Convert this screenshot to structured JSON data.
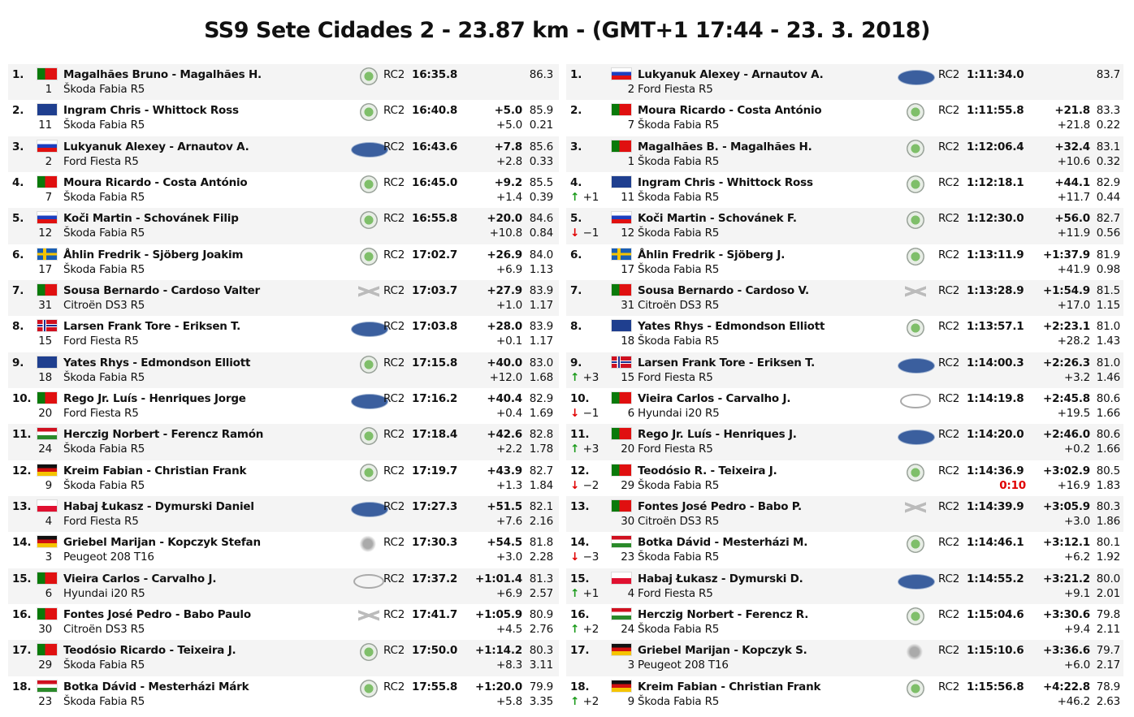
{
  "title": "SS9 Sete Cidades 2 - 23.87 km - (GMT+1 17:44 - 23. 3. 2018)",
  "colors": {
    "row_alt": "#f4f4f4",
    "penalty": "#e00000",
    "up": "#1a9a1a",
    "down": "#e00000"
  },
  "flags": {
    "PT": [
      "linear-gradient(90deg,#0a7a0a 0 40%,#e01010 40%)"
    ],
    "GB": [
      "#1f3f8f"
    ],
    "RU": [
      "linear-gradient(#fff 0 33%,#1c3fbf 33% 66%,#e01010 66%)"
    ],
    "SK": [
      "linear-gradient(#fff 0 33%,#1c3fbf 33% 66%,#e01010 66%)"
    ],
    "SE": [
      "linear-gradient(90deg,transparent 0 30%,#f5c400 30% 45%,transparent 45%),linear-gradient(transparent 0 40%,#f5c400 40% 60%,transparent 60%),#1a5fb4"
    ],
    "NO": [
      "linear-gradient(90deg,transparent 0 28%,#fff 28% 33%,#1c2f8f 33% 41%,#fff 41% 46%,transparent 46%),linear-gradient(transparent 0 35%,#fff 35% 42%,#1c2f8f 42% 58%,#fff 58% 65%,transparent 65%),#d01020"
    ],
    "HU": [
      "linear-gradient(#d01020 0 33%,#fff 33% 66%,#2a8a2a 66%)"
    ],
    "DE": [
      "linear-gradient(#111 0 33%,#d01010 33% 66%,#f5c400 66%)"
    ],
    "PL": [
      "linear-gradient(#fff 0 50%,#e01030 50%)"
    ]
  },
  "class_label": "RC2",
  "stage": [
    {
      "pos": "1.",
      "flag": "PT",
      "crew": "Magalhães Bruno - Magalhães H.",
      "num": "1",
      "car": "Škoda Fabia R5",
      "brand": "skoda",
      "time": "16:35.8",
      "diff": "",
      "speed": "86.3",
      "diff_prev": "",
      "gap": ""
    },
    {
      "pos": "2.",
      "flag": "GB",
      "crew": "Ingram Chris - Whittock Ross",
      "num": "11",
      "car": "Škoda Fabia R5",
      "brand": "skoda",
      "time": "16:40.8",
      "diff": "+5.0",
      "speed": "85.9",
      "diff_prev": "+5.0",
      "gap": "0.21"
    },
    {
      "pos": "3.",
      "flag": "RU",
      "crew": "Lukyanuk Alexey - Arnautov A.",
      "num": "2",
      "car": "Ford Fiesta R5",
      "brand": "ford",
      "time": "16:43.6",
      "diff": "+7.8",
      "speed": "85.6",
      "diff_prev": "+2.8",
      "gap": "0.33"
    },
    {
      "pos": "4.",
      "flag": "PT",
      "crew": "Moura Ricardo - Costa António",
      "num": "7",
      "car": "Škoda Fabia R5",
      "brand": "skoda",
      "time": "16:45.0",
      "diff": "+9.2",
      "speed": "85.5",
      "diff_prev": "+1.4",
      "gap": "0.39"
    },
    {
      "pos": "5.",
      "flag": "SK",
      "crew": "Koči Martin - Schovánek Filip",
      "num": "12",
      "car": "Škoda Fabia R5",
      "brand": "skoda",
      "time": "16:55.8",
      "diff": "+20.0",
      "speed": "84.6",
      "diff_prev": "+10.8",
      "gap": "0.84"
    },
    {
      "pos": "6.",
      "flag": "SE",
      "crew": "Åhlin Fredrik - Sjöberg Joakim",
      "num": "17",
      "car": "Škoda Fabia R5",
      "brand": "skoda",
      "time": "17:02.7",
      "diff": "+26.9",
      "speed": "84.0",
      "diff_prev": "+6.9",
      "gap": "1.13"
    },
    {
      "pos": "7.",
      "flag": "PT",
      "crew": "Sousa Bernardo - Cardoso Valter",
      "num": "31",
      "car": "Citroën DS3 R5",
      "brand": "citroen",
      "time": "17:03.7",
      "diff": "+27.9",
      "speed": "83.9",
      "diff_prev": "+1.0",
      "gap": "1.17"
    },
    {
      "pos": "8.",
      "flag": "NO",
      "crew": "Larsen Frank Tore - Eriksen T.",
      "num": "15",
      "car": "Ford Fiesta R5",
      "brand": "ford",
      "time": "17:03.8",
      "diff": "+28.0",
      "speed": "83.9",
      "diff_prev": "+0.1",
      "gap": "1.17"
    },
    {
      "pos": "9.",
      "flag": "GB",
      "crew": "Yates Rhys - Edmondson Elliott",
      "num": "18",
      "car": "Škoda Fabia R5",
      "brand": "skoda",
      "time": "17:15.8",
      "diff": "+40.0",
      "speed": "83.0",
      "diff_prev": "+12.0",
      "gap": "1.68"
    },
    {
      "pos": "10.",
      "flag": "PT",
      "crew": "Rego Jr. Luís - Henriques Jorge",
      "num": "20",
      "car": "Ford Fiesta R5",
      "brand": "ford",
      "time": "17:16.2",
      "diff": "+40.4",
      "speed": "82.9",
      "diff_prev": "+0.4",
      "gap": "1.69"
    },
    {
      "pos": "11.",
      "flag": "HU",
      "crew": "Herczig Norbert - Ferencz Ramón",
      "num": "24",
      "car": "Škoda Fabia R5",
      "brand": "skoda",
      "time": "17:18.4",
      "diff": "+42.6",
      "speed": "82.8",
      "diff_prev": "+2.2",
      "gap": "1.78"
    },
    {
      "pos": "12.",
      "flag": "DE",
      "crew": "Kreim Fabian - Christian Frank",
      "num": "9",
      "car": "Škoda Fabia R5",
      "brand": "skoda",
      "time": "17:19.7",
      "diff": "+43.9",
      "speed": "82.7",
      "diff_prev": "+1.3",
      "gap": "1.84"
    },
    {
      "pos": "13.",
      "flag": "PL",
      "crew": "Habaj Łukasz - Dymurski Daniel",
      "num": "4",
      "car": "Ford Fiesta R5",
      "brand": "ford",
      "time": "17:27.3",
      "diff": "+51.5",
      "speed": "82.1",
      "diff_prev": "+7.6",
      "gap": "2.16"
    },
    {
      "pos": "14.",
      "flag": "DE",
      "crew": "Griebel Marijan - Kopczyk Stefan",
      "num": "3",
      "car": "Peugeot 208 T16",
      "brand": "peugeot",
      "time": "17:30.3",
      "diff": "+54.5",
      "speed": "81.8",
      "diff_prev": "+3.0",
      "gap": "2.28"
    },
    {
      "pos": "15.",
      "flag": "PT",
      "crew": "Vieira Carlos - Carvalho J.",
      "num": "6",
      "car": "Hyundai i20 R5",
      "brand": "hyundai",
      "time": "17:37.2",
      "diff": "+1:01.4",
      "speed": "81.3",
      "diff_prev": "+6.9",
      "gap": "2.57"
    },
    {
      "pos": "16.",
      "flag": "PT",
      "crew": "Fontes José Pedro - Babo Paulo",
      "num": "30",
      "car": "Citroën DS3 R5",
      "brand": "citroen",
      "time": "17:41.7",
      "diff": "+1:05.9",
      "speed": "80.9",
      "diff_prev": "+4.5",
      "gap": "2.76"
    },
    {
      "pos": "17.",
      "flag": "PT",
      "crew": "Teodósio Ricardo - Teixeira J.",
      "num": "29",
      "car": "Škoda Fabia R5",
      "brand": "skoda",
      "time": "17:50.0",
      "diff": "+1:14.2",
      "speed": "80.3",
      "diff_prev": "+8.3",
      "gap": "3.11"
    },
    {
      "pos": "18.",
      "flag": "HU",
      "crew": "Botka Dávid - Mesterházi Márk",
      "num": "23",
      "car": "Škoda Fabia R5",
      "brand": "skoda",
      "time": "17:55.8",
      "diff": "+1:20.0",
      "speed": "79.9",
      "diff_prev": "+5.8",
      "gap": "3.35"
    }
  ],
  "overall": [
    {
      "pos": "1.",
      "change": "",
      "dir": "",
      "flag": "RU",
      "crew": "Lukyanuk Alexey - Arnautov A.",
      "num": "2",
      "car": "Ford Fiesta R5",
      "brand": "ford",
      "time": "1:11:34.0",
      "diff": "",
      "speed": "83.7",
      "penalty": "",
      "diff_prev": "",
      "gap": ""
    },
    {
      "pos": "2.",
      "change": "",
      "dir": "",
      "flag": "PT",
      "crew": "Moura Ricardo - Costa António",
      "num": "7",
      "car": "Škoda Fabia R5",
      "brand": "skoda",
      "time": "1:11:55.8",
      "diff": "+21.8",
      "speed": "83.3",
      "penalty": "",
      "diff_prev": "+21.8",
      "gap": "0.22"
    },
    {
      "pos": "3.",
      "change": "",
      "dir": "",
      "flag": "PT",
      "crew": "Magalhães B. - Magalhães H.",
      "num": "1",
      "car": "Škoda Fabia R5",
      "brand": "skoda",
      "time": "1:12:06.4",
      "diff": "+32.4",
      "speed": "83.1",
      "penalty": "",
      "diff_prev": "+10.6",
      "gap": "0.32"
    },
    {
      "pos": "4.",
      "change": "+1",
      "dir": "up",
      "flag": "GB",
      "crew": "Ingram Chris - Whittock Ross",
      "num": "11",
      "car": "Škoda Fabia R5",
      "brand": "skoda",
      "time": "1:12:18.1",
      "diff": "+44.1",
      "speed": "82.9",
      "penalty": "",
      "diff_prev": "+11.7",
      "gap": "0.44"
    },
    {
      "pos": "5.",
      "change": "−1",
      "dir": "down",
      "flag": "SK",
      "crew": "Koči Martin - Schovánek F.",
      "num": "12",
      "car": "Škoda Fabia R5",
      "brand": "skoda",
      "time": "1:12:30.0",
      "diff": "+56.0",
      "speed": "82.7",
      "penalty": "",
      "diff_prev": "+11.9",
      "gap": "0.56"
    },
    {
      "pos": "6.",
      "change": "",
      "dir": "",
      "flag": "SE",
      "crew": "Åhlin Fredrik - Sjöberg J.",
      "num": "17",
      "car": "Škoda Fabia R5",
      "brand": "skoda",
      "time": "1:13:11.9",
      "diff": "+1:37.9",
      "speed": "81.9",
      "penalty": "",
      "diff_prev": "+41.9",
      "gap": "0.98"
    },
    {
      "pos": "7.",
      "change": "",
      "dir": "",
      "flag": "PT",
      "crew": "Sousa Bernardo - Cardoso V.",
      "num": "31",
      "car": "Citroën DS3 R5",
      "brand": "citroen",
      "time": "1:13:28.9",
      "diff": "+1:54.9",
      "speed": "81.5",
      "penalty": "",
      "diff_prev": "+17.0",
      "gap": "1.15"
    },
    {
      "pos": "8.",
      "change": "",
      "dir": "",
      "flag": "GB",
      "crew": "Yates Rhys - Edmondson Elliott",
      "num": "18",
      "car": "Škoda Fabia R5",
      "brand": "skoda",
      "time": "1:13:57.1",
      "diff": "+2:23.1",
      "speed": "81.0",
      "penalty": "",
      "diff_prev": "+28.2",
      "gap": "1.43"
    },
    {
      "pos": "9.",
      "change": "+3",
      "dir": "up",
      "flag": "NO",
      "crew": "Larsen Frank Tore - Eriksen T.",
      "num": "15",
      "car": "Ford Fiesta R5",
      "brand": "ford",
      "time": "1:14:00.3",
      "diff": "+2:26.3",
      "speed": "81.0",
      "penalty": "",
      "diff_prev": "+3.2",
      "gap": "1.46"
    },
    {
      "pos": "10.",
      "change": "−1",
      "dir": "down",
      "flag": "PT",
      "crew": "Vieira Carlos - Carvalho J.",
      "num": "6",
      "car": "Hyundai i20 R5",
      "brand": "hyundai",
      "time": "1:14:19.8",
      "diff": "+2:45.8",
      "speed": "80.6",
      "penalty": "",
      "diff_prev": "+19.5",
      "gap": "1.66"
    },
    {
      "pos": "11.",
      "change": "+3",
      "dir": "up",
      "flag": "PT",
      "crew": "Rego Jr. Luís - Henriques J.",
      "num": "20",
      "car": "Ford Fiesta R5",
      "brand": "ford",
      "time": "1:14:20.0",
      "diff": "+2:46.0",
      "speed": "80.6",
      "penalty": "",
      "diff_prev": "+0.2",
      "gap": "1.66"
    },
    {
      "pos": "12.",
      "change": "−2",
      "dir": "down",
      "flag": "PT",
      "crew": "Teodósio R. - Teixeira J.",
      "num": "29",
      "car": "Škoda Fabia R5",
      "brand": "skoda",
      "time": "1:14:36.9",
      "diff": "+3:02.9",
      "speed": "80.5",
      "penalty": "0:10",
      "diff_prev": "+16.9",
      "gap": "1.83"
    },
    {
      "pos": "13.",
      "change": "",
      "dir": "",
      "flag": "PT",
      "crew": "Fontes José Pedro - Babo P.",
      "num": "30",
      "car": "Citroën DS3 R5",
      "brand": "citroen",
      "time": "1:14:39.9",
      "diff": "+3:05.9",
      "speed": "80.3",
      "penalty": "",
      "diff_prev": "+3.0",
      "gap": "1.86"
    },
    {
      "pos": "14.",
      "change": "−3",
      "dir": "down",
      "flag": "HU",
      "crew": "Botka Dávid - Mesterházi M.",
      "num": "23",
      "car": "Škoda Fabia R5",
      "brand": "skoda",
      "time": "1:14:46.1",
      "diff": "+3:12.1",
      "speed": "80.1",
      "penalty": "",
      "diff_prev": "+6.2",
      "gap": "1.92"
    },
    {
      "pos": "15.",
      "change": "+1",
      "dir": "up",
      "flag": "PL",
      "crew": "Habaj Łukasz - Dymurski D.",
      "num": "4",
      "car": "Ford Fiesta R5",
      "brand": "ford",
      "time": "1:14:55.2",
      "diff": "+3:21.2",
      "speed": "80.0",
      "penalty": "",
      "diff_prev": "+9.1",
      "gap": "2.01"
    },
    {
      "pos": "16.",
      "change": "+2",
      "dir": "up",
      "flag": "HU",
      "crew": "Herczig Norbert - Ferencz R.",
      "num": "24",
      "car": "Škoda Fabia R5",
      "brand": "skoda",
      "time": "1:15:04.6",
      "diff": "+3:30.6",
      "speed": "79.8",
      "penalty": "",
      "diff_prev": "+9.4",
      "gap": "2.11"
    },
    {
      "pos": "17.",
      "change": "",
      "dir": "",
      "flag": "DE",
      "crew": "Griebel Marijan - Kopczyk S.",
      "num": "3",
      "car": "Peugeot 208 T16",
      "brand": "peugeot",
      "time": "1:15:10.6",
      "diff": "+3:36.6",
      "speed": "79.7",
      "penalty": "",
      "diff_prev": "+6.0",
      "gap": "2.17"
    },
    {
      "pos": "18.",
      "change": "+2",
      "dir": "up",
      "flag": "DE",
      "crew": "Kreim Fabian - Christian Frank",
      "num": "9",
      "car": "Škoda Fabia R5",
      "brand": "skoda",
      "time": "1:15:56.8",
      "diff": "+4:22.8",
      "speed": "78.9",
      "penalty": "",
      "diff_prev": "+46.2",
      "gap": "2.63"
    }
  ]
}
